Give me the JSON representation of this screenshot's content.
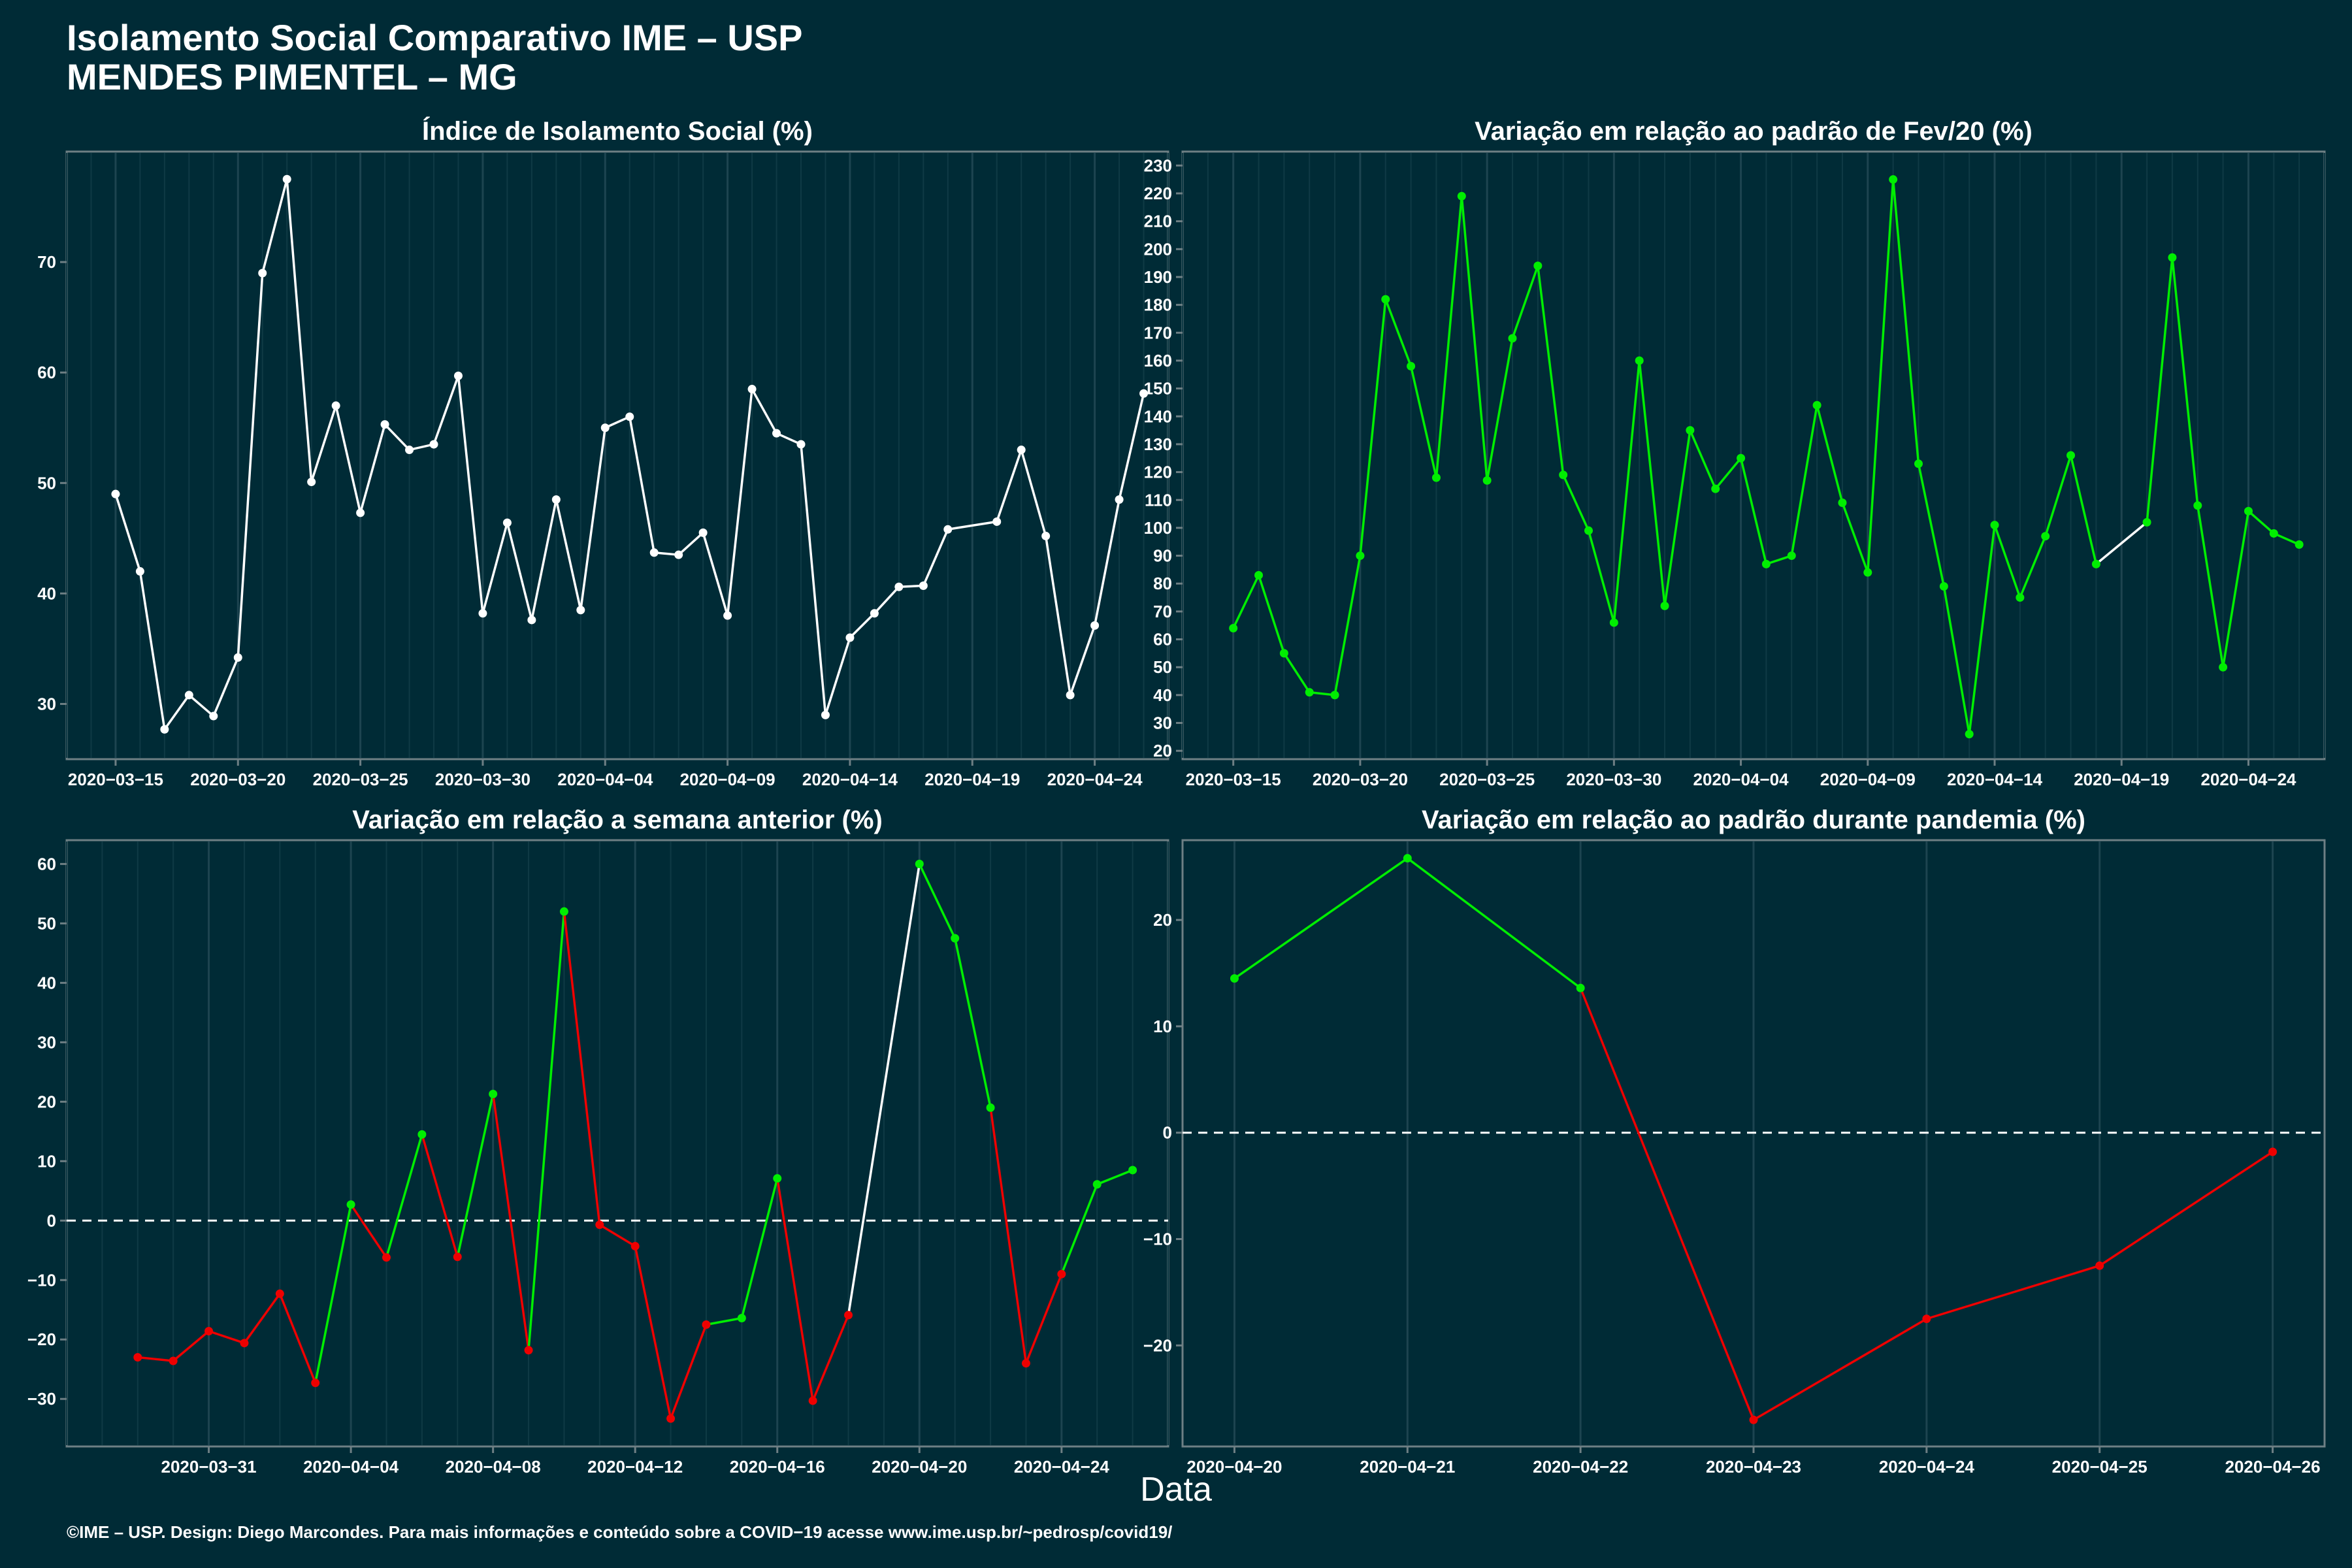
{
  "header": {
    "title_line1": "Isolamento Social Comparativo IME – USP",
    "title_line2": "MENDES PIMENTEL – MG"
  },
  "x_axis_label": "Data",
  "footer": "©IME – USP. Design: Diego Marcondes. Para mais informações e conteúdo sobre a COVID−19 acesse www.ime.usp.br/~pedrosp/covid19/",
  "colors": {
    "background": "#002b36",
    "white": "#ffffff",
    "green": "#00ee00",
    "red": "#ee0000"
  },
  "chart_data": [
    {
      "type": "line",
      "title": "Índice de Isolamento Social (%)",
      "xlabel": "Data",
      "ylabel": "",
      "x": [
        "2020-03-15",
        "2020-03-16",
        "2020-03-17",
        "2020-03-18",
        "2020-03-19",
        "2020-03-20",
        "2020-03-21",
        "2020-03-22",
        "2020-03-23",
        "2020-03-24",
        "2020-03-25",
        "2020-03-26",
        "2020-03-27",
        "2020-03-28",
        "2020-03-29",
        "2020-03-30",
        "2020-03-31",
        "2020-04-01",
        "2020-04-02",
        "2020-04-03",
        "2020-04-04",
        "2020-04-05",
        "2020-04-06",
        "2020-04-07",
        "2020-04-08",
        "2020-04-09",
        "2020-04-10",
        "2020-04-11",
        "2020-04-12",
        "2020-04-13",
        "2020-04-14",
        "2020-04-15",
        "2020-04-16",
        "2020-04-17",
        "2020-04-18",
        "2020-04-20",
        "2020-04-21",
        "2020-04-22",
        "2020-04-23",
        "2020-04-24",
        "2020-04-25",
        "2020-04-26"
      ],
      "values": [
        49,
        42,
        27.7,
        30.8,
        28.9,
        34.2,
        69,
        77.5,
        50.1,
        57,
        47.3,
        55.3,
        53,
        53.5,
        59.7,
        38.2,
        46.4,
        37.6,
        48.5,
        38.5,
        55,
        56,
        43.7,
        43.5,
        45.5,
        38,
        58.5,
        54.5,
        53.5,
        29,
        36,
        38.2,
        40.6,
        40.7,
        45.8,
        46.5,
        53,
        45.2,
        30.8,
        37.1,
        48.5,
        58.1
      ],
      "segment_colors": [],
      "ylim": [
        25,
        80
      ],
      "yticks": [
        30,
        40,
        50,
        60,
        70
      ],
      "xticks": [
        "2020-03-15",
        "2020-03-20",
        "2020-03-25",
        "2020-03-30",
        "2020-04-04",
        "2020-04-09",
        "2020-04-14",
        "2020-04-19",
        "2020-04-24"
      ],
      "xlim": [
        "2020-03-13",
        "2020-04-27"
      ],
      "grid": true
    },
    {
      "type": "line",
      "title": "Variação em relação ao padrão de Fev/20 (%)",
      "xlabel": "Data",
      "ylabel": "",
      "x": [
        "2020-03-15",
        "2020-03-16",
        "2020-03-17",
        "2020-03-18",
        "2020-03-19",
        "2020-03-20",
        "2020-03-21",
        "2020-03-22",
        "2020-03-23",
        "2020-03-24",
        "2020-03-25",
        "2020-03-26",
        "2020-03-27",
        "2020-03-28",
        "2020-03-29",
        "2020-03-30",
        "2020-03-31",
        "2020-04-01",
        "2020-04-02",
        "2020-04-03",
        "2020-04-04",
        "2020-04-05",
        "2020-04-06",
        "2020-04-07",
        "2020-04-08",
        "2020-04-09",
        "2020-04-10",
        "2020-04-11",
        "2020-04-12",
        "2020-04-13",
        "2020-04-14",
        "2020-04-15",
        "2020-04-16",
        "2020-04-17",
        "2020-04-18",
        "2020-04-20",
        "2020-04-21",
        "2020-04-22",
        "2020-04-23",
        "2020-04-24",
        "2020-04-25",
        "2020-04-26"
      ],
      "values": [
        64,
        83,
        55,
        41,
        40,
        90,
        182,
        158,
        118,
        219,
        117,
        168,
        194,
        119,
        99,
        66,
        160,
        72,
        135,
        114,
        125,
        87,
        90,
        144,
        109,
        84,
        225,
        123,
        79,
        26,
        101,
        75,
        97,
        126,
        87,
        102,
        197,
        108,
        50,
        106,
        98,
        94
      ],
      "segment_colors": [
        "#00ee00",
        "#00ee00",
        "#00ee00",
        "#00ee00",
        "#00ee00",
        "#00ee00",
        "#00ee00",
        "#00ee00",
        "#00ee00",
        "#00ee00",
        "#00ee00",
        "#00ee00",
        "#00ee00",
        "#00ee00",
        "#00ee00",
        "#00ee00",
        "#00ee00",
        "#00ee00",
        "#00ee00",
        "#00ee00",
        "#00ee00",
        "#00ee00",
        "#00ee00",
        "#00ee00",
        "#00ee00",
        "#00ee00",
        "#00ee00",
        "#00ee00",
        "#00ee00",
        "#00ee00",
        "#00ee00",
        "#00ee00",
        "#00ee00",
        "#00ee00",
        "#ffffff",
        "#00ee00",
        "#00ee00",
        "#00ee00",
        "#00ee00",
        "#00ee00",
        "#00ee00"
      ],
      "ylim": [
        17,
        235
      ],
      "yticks": [
        20,
        30,
        40,
        50,
        60,
        70,
        80,
        90,
        100,
        110,
        120,
        130,
        140,
        150,
        160,
        170,
        180,
        190,
        200,
        210,
        220,
        230
      ],
      "xticks": [
        "2020-03-15",
        "2020-03-20",
        "2020-03-25",
        "2020-03-30",
        "2020-04-04",
        "2020-04-09",
        "2020-04-14",
        "2020-04-19",
        "2020-04-24"
      ],
      "xlim": [
        "2020-03-13",
        "2020-04-27"
      ],
      "grid": true
    },
    {
      "type": "line",
      "title": "Variação em relação a semana anterior (%)",
      "xlabel": "Data",
      "ylabel": "",
      "x": [
        "2020-03-29",
        "2020-03-30",
        "2020-03-31",
        "2020-04-01",
        "2020-04-02",
        "2020-04-03",
        "2020-04-04",
        "2020-04-05",
        "2020-04-06",
        "2020-04-07",
        "2020-04-08",
        "2020-04-09",
        "2020-04-10",
        "2020-04-11",
        "2020-04-12",
        "2020-04-13",
        "2020-04-14",
        "2020-04-15",
        "2020-04-16",
        "2020-04-17",
        "2020-04-18",
        "2020-04-20",
        "2020-04-21",
        "2020-04-22",
        "2020-04-23",
        "2020-04-24",
        "2020-04-25",
        "2020-04-26"
      ],
      "values": [
        -23,
        -23.6,
        -18.6,
        -20.6,
        -12.3,
        -27.3,
        2.7,
        -6.2,
        14.5,
        -6.1,
        21.3,
        -21.8,
        52,
        -0.7,
        -4.3,
        -33.3,
        -17.5,
        -16.4,
        7.1,
        -30.3,
        -15.9,
        60,
        47.5,
        19,
        -24,
        -9,
        6.1,
        8.5
      ],
      "segment_colors": [
        "#ee0000",
        "#ee0000",
        "#ee0000",
        "#ee0000",
        "#ee0000",
        "#00ee00",
        "#ee0000",
        "#00ee00",
        "#ee0000",
        "#00ee00",
        "#ee0000",
        "#00ee00",
        "#ee0000",
        "#ee0000",
        "#ee0000",
        "#ee0000",
        "#00ee00",
        "#00ee00",
        "#ee0000",
        "#ee0000",
        "#ffffff",
        "#00ee00",
        "#00ee00",
        "#ee0000",
        "#ee0000",
        "#00ee00",
        "#00ee00"
      ],
      "ylim": [
        -38,
        64
      ],
      "yticks": [
        -30,
        -20,
        -10,
        0,
        10,
        20,
        30,
        40,
        50,
        60
      ],
      "xticks": [
        "2020-03-31",
        "2020-04-04",
        "2020-04-08",
        "2020-04-12",
        "2020-04-16",
        "2020-04-20",
        "2020-04-24"
      ],
      "xlim": [
        "2020-03-27",
        "2020-04-27"
      ],
      "reference_line": 0,
      "grid": true
    },
    {
      "type": "line",
      "title": "Variação em relação ao padrão durante pandemia (%)",
      "xlabel": "Data",
      "ylabel": "",
      "x": [
        "2020-04-20",
        "2020-04-21",
        "2020-04-22",
        "2020-04-23",
        "2020-04-24",
        "2020-04-25",
        "2020-04-26"
      ],
      "values": [
        14.5,
        25.8,
        13.6,
        -27,
        -17.5,
        -12.5,
        -1.8
      ],
      "segment_colors": [
        "#00ee00",
        "#00ee00",
        "#ee0000",
        "#ee0000",
        "#ee0000",
        "#ee0000"
      ],
      "ylim": [
        -29.5,
        27.5
      ],
      "yticks": [
        -20,
        -10,
        0,
        10,
        20
      ],
      "xticks": [
        "2020-04-20",
        "2020-04-21",
        "2020-04-22",
        "2020-04-23",
        "2020-04-24",
        "2020-04-25",
        "2020-04-26"
      ],
      "xlim": [
        "2020-04-19.7",
        "2020-04-26.3"
      ],
      "reference_line": 0,
      "grid": true
    }
  ]
}
